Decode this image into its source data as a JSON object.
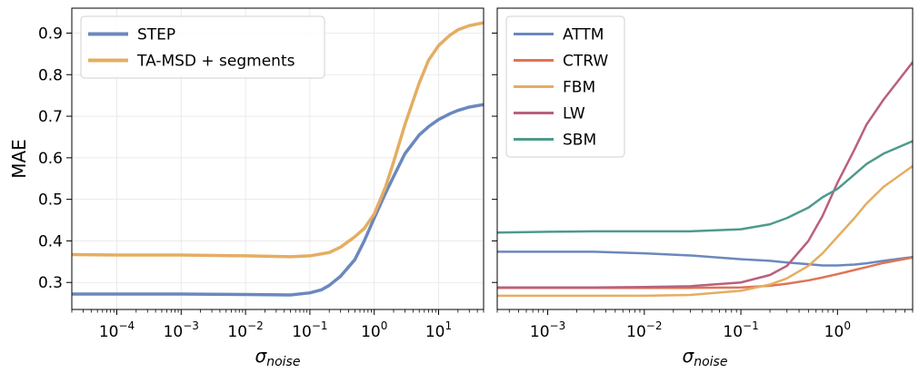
{
  "chart_data": [
    {
      "type": "line",
      "xlabel_main": "σ",
      "xlabel_sub": "noise",
      "ylabel": "MAE",
      "xscale": "log",
      "xlim": [
        2e-05,
        50
      ],
      "ylim": [
        0.235,
        0.96
      ],
      "xticks": [
        {
          "value": 0.0001,
          "base": "10",
          "exp": "−4"
        },
        {
          "value": 0.001,
          "base": "10",
          "exp": "−3"
        },
        {
          "value": 0.01,
          "base": "10",
          "exp": "−2"
        },
        {
          "value": 0.1,
          "base": "10",
          "exp": "−1"
        },
        {
          "value": 1,
          "base": "10",
          "exp": "0"
        },
        {
          "value": 10,
          "base": "10",
          "exp": "1"
        }
      ],
      "yticks": [
        "0.3",
        "0.4",
        "0.5",
        "0.6",
        "0.7",
        "0.8",
        "0.9"
      ],
      "grid": true,
      "legend_position": "top-left",
      "series": [
        {
          "name": "STEP",
          "color": "#6b88bd",
          "width": 3.5,
          "x": [
            2e-05,
            0.0001,
            0.001,
            0.01,
            0.05,
            0.1,
            0.15,
            0.2,
            0.3,
            0.5,
            0.7,
            1,
            1.5,
            2,
            3,
            5,
            7,
            10,
            15,
            20,
            30,
            50
          ],
          "y": [
            0.272,
            0.272,
            0.272,
            0.271,
            0.27,
            0.275,
            0.282,
            0.293,
            0.315,
            0.355,
            0.4,
            0.455,
            0.515,
            0.555,
            0.61,
            0.655,
            0.675,
            0.692,
            0.706,
            0.714,
            0.722,
            0.728
          ]
        },
        {
          "name": "TA-MSD + segments",
          "color": "#e5ad63",
          "width": 3.5,
          "x": [
            2e-05,
            0.0001,
            0.001,
            0.01,
            0.05,
            0.1,
            0.2,
            0.3,
            0.5,
            0.7,
            1,
            1.5,
            2,
            3,
            5,
            7,
            10,
            15,
            20,
            30,
            50
          ],
          "y": [
            0.367,
            0.366,
            0.366,
            0.364,
            0.362,
            0.364,
            0.372,
            0.385,
            0.41,
            0.43,
            0.465,
            0.53,
            0.59,
            0.68,
            0.78,
            0.835,
            0.87,
            0.895,
            0.908,
            0.918,
            0.925
          ]
        }
      ]
    },
    {
      "type": "line",
      "xlabel_main": "σ",
      "xlabel_sub": "noise",
      "ylabel": "",
      "xscale": "log",
      "xlim": [
        0.0003,
        6
      ],
      "ylim": [
        0.235,
        0.96
      ],
      "xticks": [
        {
          "value": 0.001,
          "base": "10",
          "exp": "−3"
        },
        {
          "value": 0.01,
          "base": "10",
          "exp": "−2"
        },
        {
          "value": 0.1,
          "base": "10",
          "exp": "−1"
        },
        {
          "value": 1,
          "base": "10",
          "exp": "0"
        }
      ],
      "yticks": [
        "",
        "",
        "",
        "",
        "",
        "",
        ""
      ],
      "grid": false,
      "legend_position": "top-left",
      "series": [
        {
          "name": "ATTM",
          "color": "#6b88bd",
          "width": 2.5,
          "x": [
            0.0003,
            0.001,
            0.003,
            0.01,
            0.03,
            0.1,
            0.2,
            0.3,
            0.5,
            0.7,
            1,
            1.5,
            2,
            3,
            6
          ],
          "y": [
            0.374,
            0.374,
            0.374,
            0.37,
            0.365,
            0.356,
            0.352,
            0.348,
            0.344,
            0.341,
            0.341,
            0.343,
            0.346,
            0.352,
            0.361
          ]
        },
        {
          "name": "CTRW",
          "color": "#dd7556",
          "width": 2.5,
          "x": [
            0.0003,
            0.001,
            0.003,
            0.01,
            0.03,
            0.1,
            0.2,
            0.3,
            0.5,
            0.7,
            1,
            1.5,
            2,
            3,
            6
          ],
          "y": [
            0.287,
            0.287,
            0.287,
            0.287,
            0.287,
            0.288,
            0.292,
            0.297,
            0.305,
            0.312,
            0.32,
            0.33,
            0.337,
            0.347,
            0.36
          ]
        },
        {
          "name": "FBM",
          "color": "#e5ad63",
          "width": 2.5,
          "x": [
            0.0003,
            0.001,
            0.003,
            0.01,
            0.03,
            0.1,
            0.2,
            0.3,
            0.5,
            0.7,
            1,
            1.5,
            2,
            3,
            6
          ],
          "y": [
            0.268,
            0.268,
            0.268,
            0.268,
            0.27,
            0.28,
            0.295,
            0.31,
            0.34,
            0.37,
            0.41,
            0.455,
            0.49,
            0.53,
            0.58
          ]
        },
        {
          "name": "LW",
          "color": "#b9607f",
          "width": 2.5,
          "x": [
            0.0003,
            0.001,
            0.003,
            0.01,
            0.03,
            0.1,
            0.2,
            0.3,
            0.5,
            0.7,
            1,
            1.5,
            2,
            3,
            6
          ],
          "y": [
            0.288,
            0.288,
            0.288,
            0.289,
            0.291,
            0.3,
            0.318,
            0.34,
            0.4,
            0.46,
            0.54,
            0.62,
            0.68,
            0.74,
            0.83
          ]
        },
        {
          "name": "SBM",
          "color": "#4e9a8d",
          "width": 2.5,
          "x": [
            0.0003,
            0.001,
            0.003,
            0.01,
            0.03,
            0.1,
            0.2,
            0.3,
            0.5,
            0.7,
            1,
            1.5,
            2,
            3,
            6
          ],
          "y": [
            0.42,
            0.422,
            0.423,
            0.423,
            0.423,
            0.428,
            0.44,
            0.455,
            0.48,
            0.505,
            0.525,
            0.56,
            0.585,
            0.61,
            0.64
          ]
        }
      ]
    }
  ]
}
